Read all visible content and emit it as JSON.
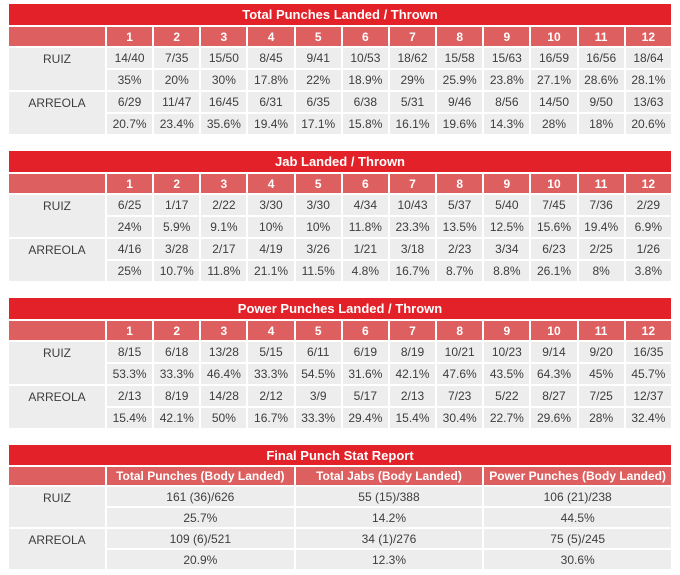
{
  "colors": {
    "title_bg": "#e22128",
    "header_bg": "#dd5f5f",
    "cell_bg": "#ededed",
    "text": "#3d3d3d",
    "header_text": "#ffffff",
    "page_bg": "#ffffff"
  },
  "chart_data": [
    {
      "type": "table",
      "title": "Total Punches Landed / Thrown",
      "columns": [
        "1",
        "2",
        "3",
        "4",
        "5",
        "6",
        "7",
        "8",
        "9",
        "10",
        "11",
        "12"
      ],
      "rows": [
        {
          "name": "RUIZ",
          "values": [
            "14/40",
            "7/35",
            "15/50",
            "8/45",
            "9/41",
            "10/53",
            "18/62",
            "15/58",
            "15/63",
            "16/59",
            "16/56",
            "18/64"
          ],
          "pct": [
            "35%",
            "20%",
            "30%",
            "17.8%",
            "22%",
            "18.9%",
            "29%",
            "25.9%",
            "23.8%",
            "27.1%",
            "28.6%",
            "28.1%"
          ]
        },
        {
          "name": "ARREOLA",
          "values": [
            "6/29",
            "11/47",
            "16/45",
            "6/31",
            "6/35",
            "6/38",
            "5/31",
            "9/46",
            "8/56",
            "14/50",
            "9/50",
            "13/63"
          ],
          "pct": [
            "20.7%",
            "23.4%",
            "35.6%",
            "19.4%",
            "17.1%",
            "15.8%",
            "16.1%",
            "19.6%",
            "14.3%",
            "28%",
            "18%",
            "20.6%"
          ]
        }
      ]
    },
    {
      "type": "table",
      "title": "Jab Landed / Thrown",
      "columns": [
        "1",
        "2",
        "3",
        "4",
        "5",
        "6",
        "7",
        "8",
        "9",
        "10",
        "11",
        "12"
      ],
      "rows": [
        {
          "name": "RUIZ",
          "values": [
            "6/25",
            "1/17",
            "2/22",
            "3/30",
            "3/30",
            "4/34",
            "10/43",
            "5/37",
            "5/40",
            "7/45",
            "7/36",
            "2/29"
          ],
          "pct": [
            "24%",
            "5.9%",
            "9.1%",
            "10%",
            "10%",
            "11.8%",
            "23.3%",
            "13.5%",
            "12.5%",
            "15.6%",
            "19.4%",
            "6.9%"
          ]
        },
        {
          "name": "ARREOLA",
          "values": [
            "4/16",
            "3/28",
            "2/17",
            "4/19",
            "3/26",
            "1/21",
            "3/18",
            "2/23",
            "3/34",
            "6/23",
            "2/25",
            "1/26"
          ],
          "pct": [
            "25%",
            "10.7%",
            "11.8%",
            "21.1%",
            "11.5%",
            "4.8%",
            "16.7%",
            "8.7%",
            "8.8%",
            "26.1%",
            "8%",
            "3.8%"
          ]
        }
      ]
    },
    {
      "type": "table",
      "title": "Power Punches Landed / Thrown",
      "columns": [
        "1",
        "2",
        "3",
        "4",
        "5",
        "6",
        "7",
        "8",
        "9",
        "10",
        "11",
        "12"
      ],
      "rows": [
        {
          "name": "RUIZ",
          "values": [
            "8/15",
            "6/18",
            "13/28",
            "5/15",
            "6/11",
            "6/19",
            "8/19",
            "10/21",
            "10/23",
            "9/14",
            "9/20",
            "16/35"
          ],
          "pct": [
            "53.3%",
            "33.3%",
            "46.4%",
            "33.3%",
            "54.5%",
            "31.6%",
            "42.1%",
            "47.6%",
            "43.5%",
            "64.3%",
            "45%",
            "45.7%"
          ]
        },
        {
          "name": "ARREOLA",
          "values": [
            "2/13",
            "8/19",
            "14/28",
            "2/12",
            "3/9",
            "5/17",
            "2/13",
            "7/23",
            "5/22",
            "8/27",
            "7/25",
            "12/37"
          ],
          "pct": [
            "15.4%",
            "42.1%",
            "50%",
            "16.7%",
            "33.3%",
            "29.4%",
            "15.4%",
            "30.4%",
            "22.7%",
            "29.6%",
            "28%",
            "32.4%"
          ]
        }
      ]
    },
    {
      "type": "table",
      "title": "Final Punch Stat Report",
      "columns": [
        "Total Punches (Body Landed)",
        "Total Jabs (Body Landed)",
        "Power Punches (Body Landed)"
      ],
      "rows": [
        {
          "name": "RUIZ",
          "values": [
            "161 (36)/626",
            "55 (15)/388",
            "106 (21)/238"
          ],
          "pct": [
            "25.7%",
            "14.2%",
            "44.5%"
          ]
        },
        {
          "name": "ARREOLA",
          "values": [
            "109 (6)/521",
            "34 (1)/276",
            "75 (5)/245"
          ],
          "pct": [
            "20.9%",
            "12.3%",
            "30.6%"
          ]
        }
      ]
    }
  ]
}
